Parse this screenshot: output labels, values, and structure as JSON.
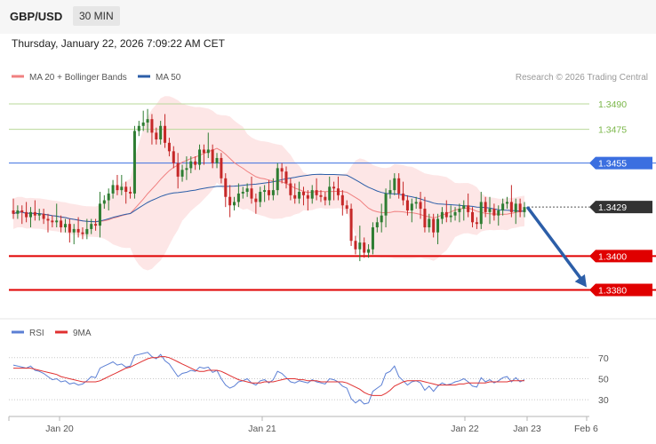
{
  "header": {
    "symbol": "GBP/USD",
    "timeframe": "30 MIN"
  },
  "timestamp": "Thursday, January 22, 2026 7:09:22 AM CET",
  "legend": {
    "items": [
      {
        "label": "MA 20 + Bollinger Bands",
        "color": "#f08080"
      },
      {
        "label": "MA 50",
        "color": "#2c5ea8"
      }
    ]
  },
  "credit": "Research © 2026 Trading Central",
  "rsi_legend": {
    "items": [
      {
        "label": "RSI",
        "color": "#5b7fd4"
      },
      {
        "label": "9MA",
        "color": "#e03030"
      }
    ]
  },
  "colors": {
    "up": "#2e7d32",
    "down": "#c62828",
    "band": "#fde3e3",
    "ma20": "#f08080",
    "ma50": "#2c5ea8",
    "support": "#e00000",
    "resistance": "#3b6fe0",
    "target": "#7ab648",
    "current": "#333333",
    "arrow": "#2c5ea8"
  },
  "chart_data": [
    {
      "type": "candlestick",
      "x_labels": [
        "Jan 20",
        "Jan 21",
        "Jan 22",
        "Jan 23",
        "Feb 6"
      ],
      "y_range": [
        1.3365,
        1.35
      ],
      "levels": [
        {
          "value": 1.349,
          "label": "1.3490",
          "kind": "target"
        },
        {
          "value": 1.3475,
          "label": "1.3475",
          "kind": "target"
        },
        {
          "value": 1.3455,
          "label": "1.3455",
          "kind": "resistance"
        },
        {
          "value": 1.3429,
          "label": "1.3429",
          "kind": "current"
        },
        {
          "value": 1.34,
          "label": "1.3400",
          "kind": "support"
        },
        {
          "value": 1.338,
          "label": "1.3380",
          "kind": "support"
        }
      ],
      "close_series": [
        1.3425,
        1.3427,
        1.3426,
        1.3423,
        1.3426,
        1.3424,
        1.3425,
        1.3422,
        1.3421,
        1.342,
        1.3421,
        1.3417,
        1.3419,
        1.3414,
        1.3416,
        1.3414,
        1.3413,
        1.3416,
        1.3419,
        1.3418,
        1.3431,
        1.3433,
        1.3437,
        1.3442,
        1.3439,
        1.3441,
        1.3438,
        1.3437,
        1.3474,
        1.3477,
        1.3479,
        1.3481,
        1.3473,
        1.3469,
        1.3477,
        1.3467,
        1.3462,
        1.3455,
        1.3447,
        1.3451,
        1.3452,
        1.3456,
        1.3454,
        1.3463,
        1.3461,
        1.3463,
        1.3455,
        1.3458,
        1.3446,
        1.3435,
        1.343,
        1.3432,
        1.3437,
        1.3438,
        1.344,
        1.3434,
        1.3432,
        1.3438,
        1.3439,
        1.3436,
        1.3439,
        1.3452,
        1.345,
        1.3443,
        1.3436,
        1.3434,
        1.3438,
        1.3436,
        1.3434,
        1.3439,
        1.3436,
        1.3435,
        1.3433,
        1.3441,
        1.344,
        1.3436,
        1.343,
        1.3428,
        1.3409,
        1.3404,
        1.3408,
        1.3402,
        1.3404,
        1.3417,
        1.342,
        1.3424,
        1.3437,
        1.3439,
        1.3446,
        1.3437,
        1.3433,
        1.3427,
        1.3431,
        1.3432,
        1.3428,
        1.3417,
        1.3422,
        1.3414,
        1.3422,
        1.3426,
        1.3423,
        1.3424,
        1.3426,
        1.3428,
        1.343,
        1.3426,
        1.342,
        1.3419,
        1.3432,
        1.3426,
        1.3428,
        1.3424,
        1.3427,
        1.3431,
        1.3432,
        1.3426,
        1.3431,
        1.3426,
        1.3429
      ],
      "projection": {
        "from": 1.3429,
        "to": 1.338
      }
    },
    {
      "type": "line",
      "name": "RSI",
      "y_ticks": [
        70,
        50,
        30
      ],
      "y_range": [
        20,
        85
      ],
      "series": [
        {
          "name": "RSI",
          "values": [
            63,
            62,
            61,
            60,
            62,
            58,
            57,
            55,
            52,
            49,
            50,
            47,
            48,
            45,
            46,
            44,
            45,
            48,
            52,
            51,
            60,
            62,
            64,
            66,
            63,
            64,
            61,
            62,
            72,
            73,
            74,
            75,
            71,
            69,
            73,
            67,
            64,
            58,
            52,
            55,
            56,
            58,
            57,
            61,
            60,
            61,
            56,
            58,
            50,
            44,
            41,
            43,
            47,
            48,
            50,
            46,
            44,
            48,
            49,
            46,
            49,
            57,
            55,
            51,
            47,
            46,
            48,
            47,
            46,
            49,
            47,
            46,
            45,
            50,
            49,
            47,
            43,
            41,
            31,
            27,
            30,
            26,
            27,
            38,
            41,
            44,
            55,
            57,
            62,
            52,
            48,
            44,
            47,
            48,
            46,
            39,
            43,
            38,
            43,
            46,
            44,
            45,
            47,
            48,
            50,
            47,
            43,
            42,
            51,
            47,
            49,
            46,
            48,
            51,
            52,
            47,
            51,
            47,
            49
          ]
        },
        {
          "name": "9MA",
          "values": [
            60,
            60,
            60,
            60,
            60,
            59,
            58,
            57,
            56,
            55,
            54,
            52,
            51,
            50,
            49,
            48,
            47,
            47,
            47,
            47,
            48,
            50,
            52,
            54,
            56,
            58,
            60,
            61,
            63,
            65,
            67,
            69,
            70,
            70,
            71,
            71,
            70,
            68,
            66,
            64,
            62,
            60,
            58,
            57,
            57,
            58,
            58,
            58,
            57,
            55,
            53,
            51,
            49,
            48,
            47,
            46,
            46,
            46,
            47,
            47,
            47,
            48,
            49,
            50,
            50,
            50,
            49,
            49,
            48,
            48,
            48,
            47,
            47,
            47,
            47,
            47,
            47,
            46,
            44,
            42,
            40,
            37,
            35,
            34,
            34,
            34,
            36,
            39,
            43,
            45,
            47,
            48,
            48,
            48,
            48,
            47,
            46,
            45,
            44,
            44,
            44,
            44,
            44,
            45,
            45,
            46,
            46,
            46,
            46,
            46,
            47,
            47,
            47,
            47,
            47,
            48,
            48,
            48,
            48
          ]
        }
      ]
    }
  ]
}
